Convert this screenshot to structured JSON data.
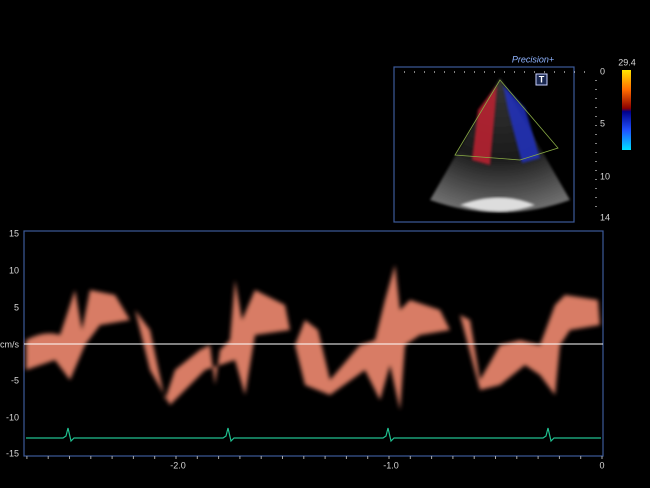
{
  "echo": {
    "brand": "Precision+",
    "mode_icon": "T",
    "depth_ticks": [
      "0",
      "5",
      "10",
      "14"
    ],
    "color_scale_max": "29.4"
  },
  "doppler": {
    "unit": "cm/s",
    "velocity_ticks": [
      "15",
      "10",
      "5",
      "-5",
      "-10",
      "-15"
    ],
    "time_ticks": [
      "-2.0",
      "-1.0",
      "0"
    ]
  }
}
